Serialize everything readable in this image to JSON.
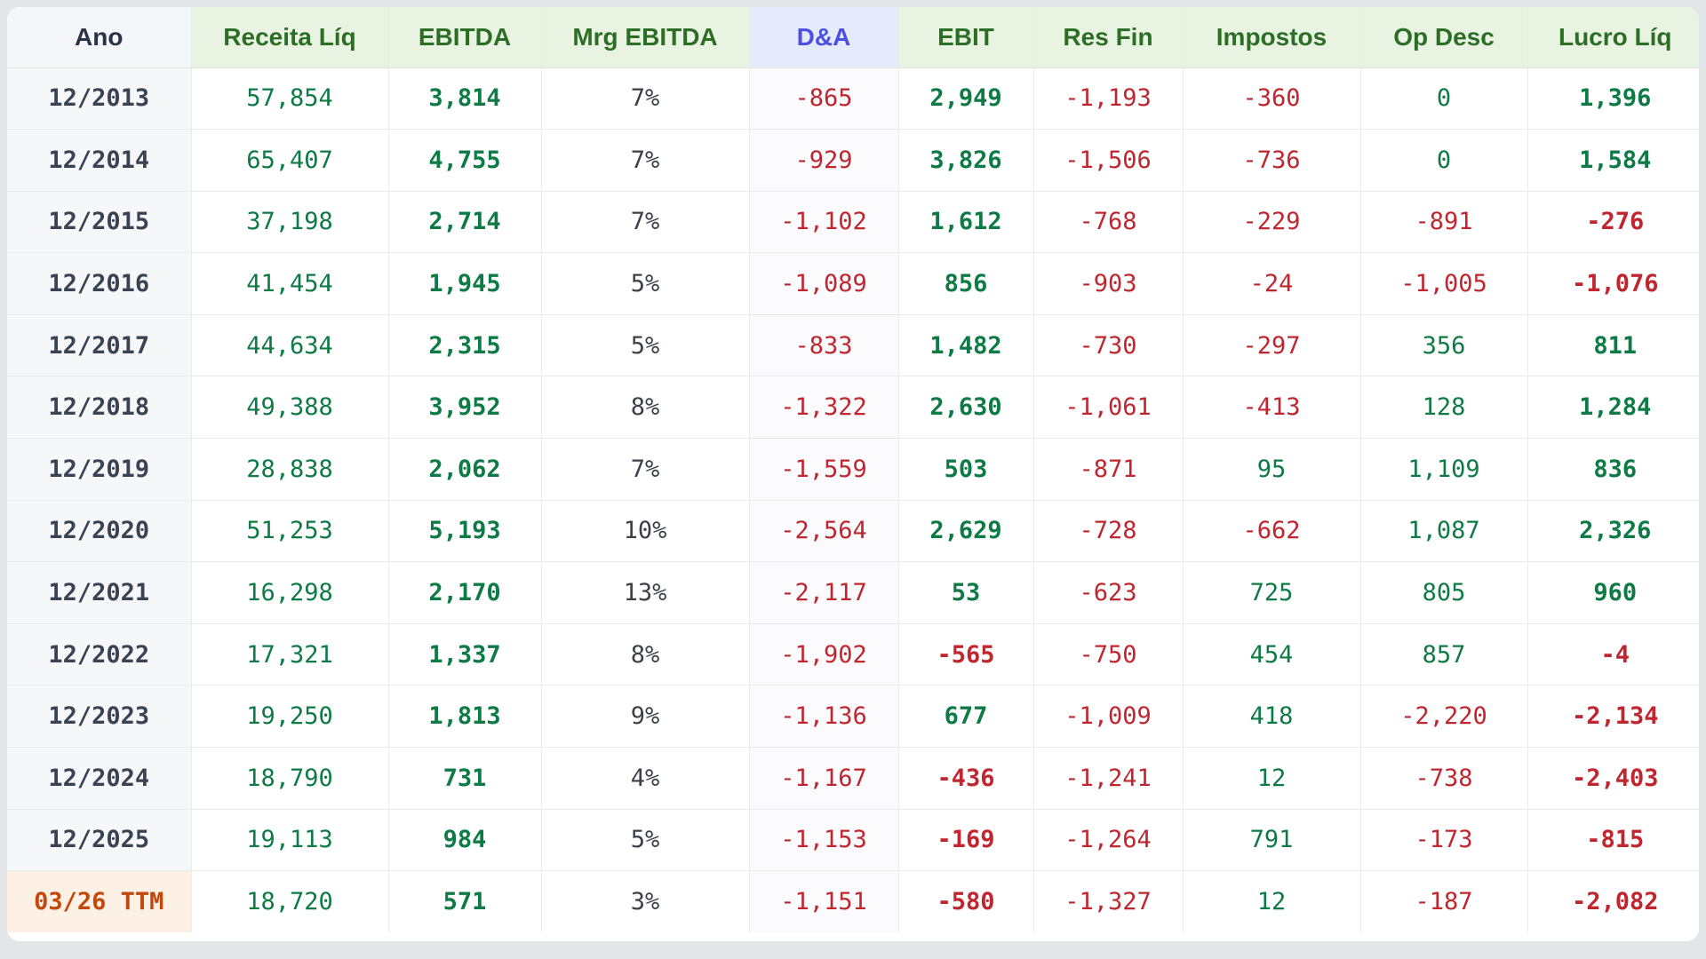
{
  "colors": {
    "positive": "#0e7a45",
    "negative": "#c0262f",
    "header_green_bg": "#e9f3e1",
    "header_green_text": "#2c6e25",
    "header_da_bg": "#e6eafd",
    "header_da_text": "#4c4fe0",
    "ttm_bg": "#fdf1e5",
    "ttm_text": "#c2480c"
  },
  "table": {
    "headers": [
      "Ano",
      "Receita Líq",
      "EBITDA",
      "Mrg EBITDA",
      "D&A",
      "EBIT",
      "Res Fin",
      "Impostos",
      "Op Desc",
      "Lucro Líq"
    ],
    "rows": [
      {
        "ano": "12/2013",
        "receita": "57,854",
        "ebitda": "3,814",
        "margem": "7%",
        "da": "-865",
        "ebit": "2,949",
        "resfin": "-1,193",
        "impostos": "-360",
        "opdesc": "0",
        "lucro": "1,396"
      },
      {
        "ano": "12/2014",
        "receita": "65,407",
        "ebitda": "4,755",
        "margem": "7%",
        "da": "-929",
        "ebit": "3,826",
        "resfin": "-1,506",
        "impostos": "-736",
        "opdesc": "0",
        "lucro": "1,584"
      },
      {
        "ano": "12/2015",
        "receita": "37,198",
        "ebitda": "2,714",
        "margem": "7%",
        "da": "-1,102",
        "ebit": "1,612",
        "resfin": "-768",
        "impostos": "-229",
        "opdesc": "-891",
        "lucro": "-276"
      },
      {
        "ano": "12/2016",
        "receita": "41,454",
        "ebitda": "1,945",
        "margem": "5%",
        "da": "-1,089",
        "ebit": "856",
        "resfin": "-903",
        "impostos": "-24",
        "opdesc": "-1,005",
        "lucro": "-1,076"
      },
      {
        "ano": "12/2017",
        "receita": "44,634",
        "ebitda": "2,315",
        "margem": "5%",
        "da": "-833",
        "ebit": "1,482",
        "resfin": "-730",
        "impostos": "-297",
        "opdesc": "356",
        "lucro": "811"
      },
      {
        "ano": "12/2018",
        "receita": "49,388",
        "ebitda": "3,952",
        "margem": "8%",
        "da": "-1,322",
        "ebit": "2,630",
        "resfin": "-1,061",
        "impostos": "-413",
        "opdesc": "128",
        "lucro": "1,284"
      },
      {
        "ano": "12/2019",
        "receita": "28,838",
        "ebitda": "2,062",
        "margem": "7%",
        "da": "-1,559",
        "ebit": "503",
        "resfin": "-871",
        "impostos": "95",
        "opdesc": "1,109",
        "lucro": "836"
      },
      {
        "ano": "12/2020",
        "receita": "51,253",
        "ebitda": "5,193",
        "margem": "10%",
        "da": "-2,564",
        "ebit": "2,629",
        "resfin": "-728",
        "impostos": "-662",
        "opdesc": "1,087",
        "lucro": "2,326"
      },
      {
        "ano": "12/2021",
        "receita": "16,298",
        "ebitda": "2,170",
        "margem": "13%",
        "da": "-2,117",
        "ebit": "53",
        "resfin": "-623",
        "impostos": "725",
        "opdesc": "805",
        "lucro": "960"
      },
      {
        "ano": "12/2022",
        "receita": "17,321",
        "ebitda": "1,337",
        "margem": "8%",
        "da": "-1,902",
        "ebit": "-565",
        "resfin": "-750",
        "impostos": "454",
        "opdesc": "857",
        "lucro": "-4"
      },
      {
        "ano": "12/2023",
        "receita": "19,250",
        "ebitda": "1,813",
        "margem": "9%",
        "da": "-1,136",
        "ebit": "677",
        "resfin": "-1,009",
        "impostos": "418",
        "opdesc": "-2,220",
        "lucro": "-2,134"
      },
      {
        "ano": "12/2024",
        "receita": "18,790",
        "ebitda": "731",
        "margem": "4%",
        "da": "-1,167",
        "ebit": "-436",
        "resfin": "-1,241",
        "impostos": "12",
        "opdesc": "-738",
        "lucro": "-2,403"
      },
      {
        "ano": "12/2025",
        "receita": "19,113",
        "ebitda": "984",
        "margem": "5%",
        "da": "-1,153",
        "ebit": "-169",
        "resfin": "-1,264",
        "impostos": "791",
        "opdesc": "-173",
        "lucro": "-815"
      },
      {
        "ano": "03/26 TTM",
        "receita": "18,720",
        "ebitda": "571",
        "margem": "3%",
        "da": "-1,151",
        "ebit": "-580",
        "resfin": "-1,327",
        "impostos": "12",
        "opdesc": "-187",
        "lucro": "-2,082"
      }
    ]
  }
}
